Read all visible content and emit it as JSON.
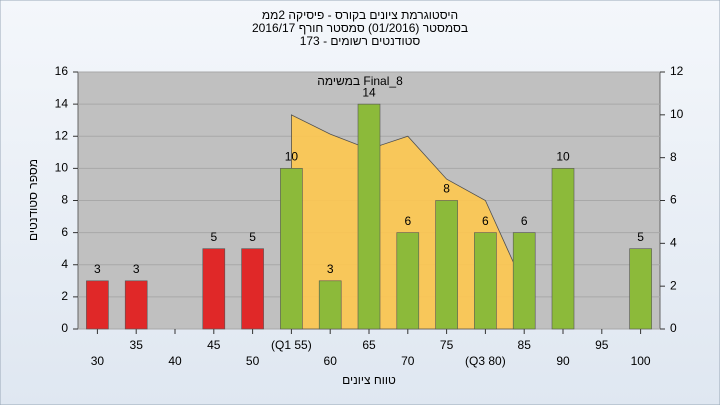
{
  "chart_data": {
    "type": "bar",
    "title_lines": [
      "היסטוגרמת ציונים בקורס - פיסיקה 2ממ",
      "בסמסטר  (01/2016)  סמסטר חורף 2016/17",
      "סטודנטים רשומים - 173"
    ],
    "x_label": "טווח ציונים",
    "y_label": "מספר סטודנטים",
    "categories": [
      "30",
      "35",
      "40",
      "45",
      "50",
      "(Q1 55)",
      "60",
      "65",
      "70",
      "75",
      "(Q3 80)",
      "85",
      "90",
      "95",
      "100"
    ],
    "values": [
      3,
      3,
      null,
      5,
      5,
      10,
      3,
      14,
      6,
      8,
      6,
      6,
      10,
      null,
      5
    ],
    "bar_colors": [
      "#e02828",
      "#e02828",
      null,
      "#e02828",
      "#e02828",
      "#8cba3a",
      "#8cba3a",
      "#8cba3a",
      "#8cba3a",
      "#8cba3a",
      "#8cba3a",
      "#8cba3a",
      "#8cba3a",
      null,
      "#8cba3a"
    ],
    "area": {
      "name": "במשימה Final_8",
      "color": "#ffc850",
      "axis": "y2",
      "values": [
        null,
        null,
        null,
        null,
        null,
        10,
        9.1,
        8.4,
        9,
        7,
        6,
        2,
        null,
        null,
        null
      ]
    },
    "ylim": [
      0,
      16
    ],
    "yticks": [
      0,
      2,
      4,
      6,
      8,
      10,
      12,
      14,
      16
    ],
    "y2lim": [
      0,
      12
    ],
    "y2ticks": [
      0,
      2,
      4,
      6,
      8,
      10,
      12
    ],
    "grid": true
  }
}
